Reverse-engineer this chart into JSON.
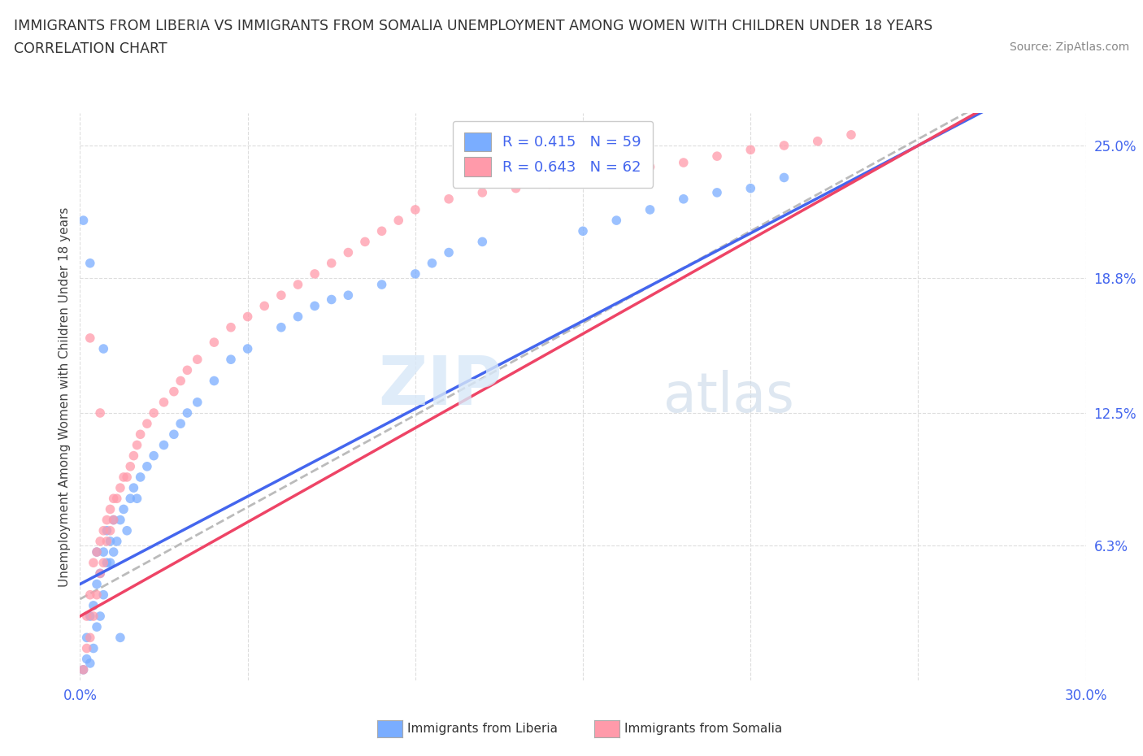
{
  "title_line1": "IMMIGRANTS FROM LIBERIA VS IMMIGRANTS FROM SOMALIA UNEMPLOYMENT AMONG WOMEN WITH CHILDREN UNDER 18 YEARS",
  "title_line2": "CORRELATION CHART",
  "source": "Source: ZipAtlas.com",
  "ylabel": "Unemployment Among Women with Children Under 18 years",
  "xlim": [
    0,
    0.3
  ],
  "ylim": [
    0,
    0.265
  ],
  "xticks": [
    0.0,
    0.05,
    0.1,
    0.15,
    0.2,
    0.25,
    0.3
  ],
  "yticks_right": [
    0.063,
    0.125,
    0.188,
    0.25
  ],
  "ytick_labels_right": [
    "6.3%",
    "12.5%",
    "18.8%",
    "25.0%"
  ],
  "liberia_color": "#7aadff",
  "somalia_color": "#ff9aaa",
  "liberia_line_color": "#4466ee",
  "somalia_line_color": "#ee4466",
  "legend_label1": "Immigrants from Liberia",
  "legend_label2": "Immigrants from Somalia",
  "watermark": "ZIPatlas",
  "liberia_x": [
    0.001,
    0.002,
    0.002,
    0.003,
    0.003,
    0.004,
    0.004,
    0.005,
    0.005,
    0.005,
    0.006,
    0.006,
    0.007,
    0.007,
    0.008,
    0.008,
    0.009,
    0.009,
    0.01,
    0.01,
    0.011,
    0.012,
    0.013,
    0.014,
    0.015,
    0.016,
    0.017,
    0.018,
    0.02,
    0.022,
    0.025,
    0.028,
    0.03,
    0.032,
    0.035,
    0.04,
    0.045,
    0.05,
    0.06,
    0.065,
    0.07,
    0.075,
    0.08,
    0.09,
    0.1,
    0.105,
    0.11,
    0.12,
    0.15,
    0.16,
    0.17,
    0.18,
    0.19,
    0.2,
    0.21,
    0.001,
    0.003,
    0.007,
    0.012
  ],
  "liberia_y": [
    0.005,
    0.01,
    0.02,
    0.008,
    0.03,
    0.015,
    0.035,
    0.025,
    0.045,
    0.06,
    0.03,
    0.05,
    0.04,
    0.06,
    0.055,
    0.07,
    0.055,
    0.065,
    0.06,
    0.075,
    0.065,
    0.075,
    0.08,
    0.07,
    0.085,
    0.09,
    0.085,
    0.095,
    0.1,
    0.105,
    0.11,
    0.115,
    0.12,
    0.125,
    0.13,
    0.14,
    0.15,
    0.155,
    0.165,
    0.17,
    0.175,
    0.178,
    0.18,
    0.185,
    0.19,
    0.195,
    0.2,
    0.205,
    0.21,
    0.215,
    0.22,
    0.225,
    0.228,
    0.23,
    0.235,
    0.215,
    0.195,
    0.155,
    0.02
  ],
  "somalia_x": [
    0.001,
    0.002,
    0.002,
    0.003,
    0.003,
    0.004,
    0.004,
    0.005,
    0.005,
    0.006,
    0.006,
    0.007,
    0.007,
    0.008,
    0.008,
    0.009,
    0.009,
    0.01,
    0.01,
    0.011,
    0.012,
    0.013,
    0.014,
    0.015,
    0.016,
    0.017,
    0.018,
    0.02,
    0.022,
    0.025,
    0.028,
    0.03,
    0.032,
    0.035,
    0.04,
    0.045,
    0.05,
    0.055,
    0.06,
    0.065,
    0.07,
    0.075,
    0.08,
    0.085,
    0.09,
    0.095,
    0.1,
    0.11,
    0.12,
    0.13,
    0.14,
    0.15,
    0.16,
    0.17,
    0.18,
    0.19,
    0.2,
    0.21,
    0.22,
    0.23,
    0.003,
    0.006
  ],
  "somalia_y": [
    0.005,
    0.015,
    0.03,
    0.02,
    0.04,
    0.03,
    0.055,
    0.04,
    0.06,
    0.05,
    0.065,
    0.055,
    0.07,
    0.065,
    0.075,
    0.07,
    0.08,
    0.075,
    0.085,
    0.085,
    0.09,
    0.095,
    0.095,
    0.1,
    0.105,
    0.11,
    0.115,
    0.12,
    0.125,
    0.13,
    0.135,
    0.14,
    0.145,
    0.15,
    0.158,
    0.165,
    0.17,
    0.175,
    0.18,
    0.185,
    0.19,
    0.195,
    0.2,
    0.205,
    0.21,
    0.215,
    0.22,
    0.225,
    0.228,
    0.23,
    0.232,
    0.235,
    0.238,
    0.24,
    0.242,
    0.245,
    0.248,
    0.25,
    0.252,
    0.255,
    0.16,
    0.125
  ],
  "liberia_slope": 0.82,
  "liberia_intercept": 0.045,
  "somalia_slope": 0.88,
  "somalia_intercept": 0.03,
  "gray_slope": 0.86,
  "gray_intercept": 0.038,
  "background_color": "#ffffff",
  "grid_color": "#dddddd"
}
